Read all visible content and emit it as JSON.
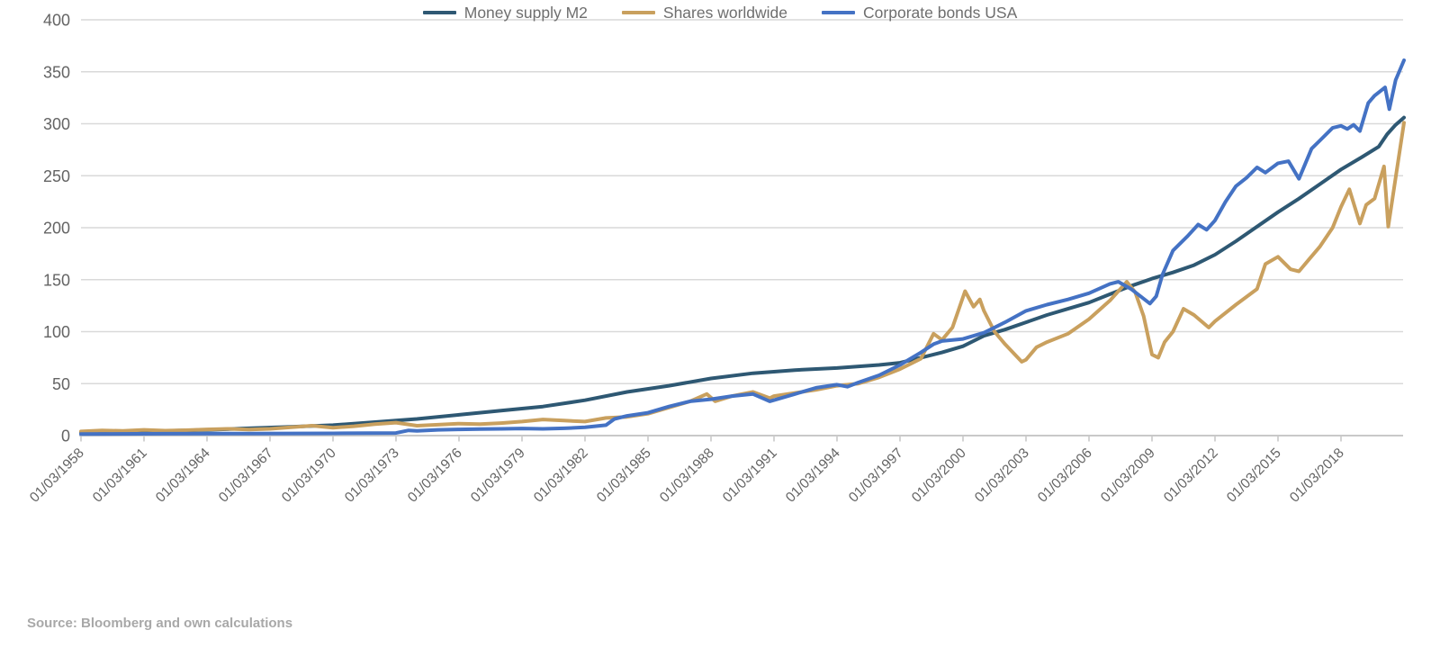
{
  "source_note": "Source: Bloomberg and own calculations",
  "colors": {
    "background": "#ffffff",
    "gridline": "#d9d9d9",
    "axis_line": "#c9c9c9",
    "tick_text": "#646464",
    "legend_text": "#6e6e6e",
    "source_text": "#a8a8a8",
    "series_money_supply": "#2e5873",
    "series_shares": "#c9a05e",
    "series_bonds": "#4472c4"
  },
  "chart_data": {
    "type": "line",
    "title": "",
    "grid": true,
    "legend_position": "bottom-center",
    "y_axis": {
      "min": 0,
      "max": 400,
      "step": 50,
      "tick_labels": [
        "0",
        "50",
        "100",
        "150",
        "200",
        "250",
        "300",
        "350",
        "400"
      ]
    },
    "x_axis": {
      "date_format": "dd/mm/yyyy",
      "label_rotation_deg": -45,
      "tick_years": [
        1958,
        1961,
        1964,
        1967,
        1970,
        1973,
        1976,
        1979,
        1982,
        1985,
        1988,
        1991,
        1994,
        1997,
        2000,
        2003,
        2006,
        2009,
        2012,
        2015,
        2018
      ],
      "tick_labels": [
        "01/03/1958",
        "01/03/1961",
        "01/03/1964",
        "01/03/1967",
        "01/03/1970",
        "01/03/1973",
        "01/03/1976",
        "01/03/1979",
        "01/03/1982",
        "01/03/1985",
        "01/03/1988",
        "01/03/1991",
        "01/03/1994",
        "01/03/1997",
        "01/03/2000",
        "01/03/2003",
        "01/03/2006",
        "01/03/2009",
        "01/03/2012",
        "01/03/2015",
        "01/03/2018"
      ],
      "data_end_year": 2021
    },
    "series": [
      {
        "name": "Money supply M2",
        "color": "#2e5873",
        "points": [
          [
            1958,
            3
          ],
          [
            1960,
            3.5
          ],
          [
            1962,
            4.5
          ],
          [
            1964,
            5.5
          ],
          [
            1966,
            7
          ],
          [
            1968,
            8.5
          ],
          [
            1970,
            10
          ],
          [
            1972,
            13
          ],
          [
            1974,
            16
          ],
          [
            1976,
            20
          ],
          [
            1978,
            24
          ],
          [
            1980,
            28
          ],
          [
            1982,
            34
          ],
          [
            1984,
            42
          ],
          [
            1986,
            48
          ],
          [
            1988,
            55
          ],
          [
            1990,
            60
          ],
          [
            1992,
            63
          ],
          [
            1994,
            65
          ],
          [
            1996,
            68
          ],
          [
            1997,
            70
          ],
          [
            1998,
            75
          ],
          [
            1999,
            80
          ],
          [
            2000,
            86
          ],
          [
            2001,
            96
          ],
          [
            2002,
            102
          ],
          [
            2003,
            109
          ],
          [
            2004,
            116
          ],
          [
            2005,
            122
          ],
          [
            2006,
            128
          ],
          [
            2007,
            136
          ],
          [
            2008,
            144
          ],
          [
            2009,
            151
          ],
          [
            2010,
            157
          ],
          [
            2011,
            164
          ],
          [
            2012,
            174
          ],
          [
            2013,
            187
          ],
          [
            2014,
            201
          ],
          [
            2015,
            215
          ],
          [
            2016,
            228
          ],
          [
            2017,
            242
          ],
          [
            2018,
            256
          ],
          [
            2019,
            268
          ],
          [
            2019.8,
            278
          ],
          [
            2020.2,
            290
          ],
          [
            2020.6,
            299
          ],
          [
            2021,
            306
          ]
        ]
      },
      {
        "name": "Shares worldwide",
        "color": "#c9a05e",
        "points": [
          [
            1958,
            4
          ],
          [
            1959,
            5
          ],
          [
            1960,
            4.5
          ],
          [
            1961,
            5.5
          ],
          [
            1962,
            4.8
          ],
          [
            1963,
            5.2
          ],
          [
            1964,
            6
          ],
          [
            1965,
            6.5
          ],
          [
            1966,
            5.8
          ],
          [
            1967,
            6.5
          ],
          [
            1968,
            8
          ],
          [
            1969,
            9.5
          ],
          [
            1970,
            7.5
          ],
          [
            1971,
            9
          ],
          [
            1972,
            11
          ],
          [
            1973,
            12.5
          ],
          [
            1974,
            9.5
          ],
          [
            1975,
            10.5
          ],
          [
            1976,
            11.5
          ],
          [
            1977,
            11
          ],
          [
            1978,
            12
          ],
          [
            1979,
            13.5
          ],
          [
            1980,
            15.5
          ],
          [
            1981,
            14.5
          ],
          [
            1982,
            13.5
          ],
          [
            1983,
            17
          ],
          [
            1984,
            18
          ],
          [
            1985,
            21
          ],
          [
            1986,
            27
          ],
          [
            1987,
            33
          ],
          [
            1987.8,
            40
          ],
          [
            1988.2,
            33
          ],
          [
            1989,
            38
          ],
          [
            1990,
            42
          ],
          [
            1990.8,
            36
          ],
          [
            1991,
            38
          ],
          [
            1992,
            41
          ],
          [
            1993,
            44
          ],
          [
            1994,
            48
          ],
          [
            1995,
            50
          ],
          [
            1996,
            56
          ],
          [
            1997,
            64
          ],
          [
            1998,
            74
          ],
          [
            1998.6,
            98
          ],
          [
            1999,
            92
          ],
          [
            1999.5,
            104
          ],
          [
            2000.1,
            139
          ],
          [
            2000.5,
            124
          ],
          [
            2000.8,
            131
          ],
          [
            2001,
            120
          ],
          [
            2001.5,
            100
          ],
          [
            2002,
            88
          ],
          [
            2002.8,
            71
          ],
          [
            2003,
            73
          ],
          [
            2003.5,
            85
          ],
          [
            2004,
            90
          ],
          [
            2005,
            98
          ],
          [
            2006,
            112
          ],
          [
            2007,
            130
          ],
          [
            2007.8,
            148
          ],
          [
            2008.2,
            138
          ],
          [
            2008.6,
            115
          ],
          [
            2009,
            78
          ],
          [
            2009.3,
            75
          ],
          [
            2009.6,
            90
          ],
          [
            2010,
            100
          ],
          [
            2010.5,
            122
          ],
          [
            2011,
            116
          ],
          [
            2011.7,
            104
          ],
          [
            2012,
            110
          ],
          [
            2013,
            126
          ],
          [
            2014,
            141
          ],
          [
            2014.4,
            165
          ],
          [
            2015,
            172
          ],
          [
            2015.6,
            160
          ],
          [
            2016,
            158
          ],
          [
            2016.5,
            170
          ],
          [
            2017,
            182
          ],
          [
            2017.6,
            200
          ],
          [
            2018,
            220
          ],
          [
            2018.4,
            237
          ],
          [
            2018.9,
            204
          ],
          [
            2019.2,
            222
          ],
          [
            2019.6,
            228
          ],
          [
            2020.05,
            259
          ],
          [
            2020.25,
            201
          ],
          [
            2020.6,
            248
          ],
          [
            2021,
            301
          ]
        ]
      },
      {
        "name": "Corporate bonds USA",
        "color": "#4472c4",
        "points": [
          [
            1958,
            1.5
          ],
          [
            1962,
            1.8
          ],
          [
            1966,
            2
          ],
          [
            1970,
            2.2
          ],
          [
            1973,
            2.5
          ],
          [
            1973.6,
            5
          ],
          [
            1974,
            4.5
          ],
          [
            1975,
            5.5
          ],
          [
            1976,
            6
          ],
          [
            1977,
            6.2
          ],
          [
            1978,
            6.5
          ],
          [
            1979,
            6.8
          ],
          [
            1980,
            6.5
          ],
          [
            1981,
            7
          ],
          [
            1982,
            8
          ],
          [
            1983,
            10
          ],
          [
            1983.4,
            16
          ],
          [
            1984,
            19
          ],
          [
            1985,
            22
          ],
          [
            1986,
            28
          ],
          [
            1987,
            33
          ],
          [
            1988,
            35
          ],
          [
            1989,
            38
          ],
          [
            1990,
            40
          ],
          [
            1990.8,
            33
          ],
          [
            1992,
            40
          ],
          [
            1993,
            46
          ],
          [
            1994,
            49
          ],
          [
            1994.5,
            47
          ],
          [
            1995,
            51
          ],
          [
            1996,
            58
          ],
          [
            1997,
            68
          ],
          [
            1998,
            80
          ],
          [
            1998.6,
            88
          ],
          [
            1999,
            91
          ],
          [
            2000,
            93
          ],
          [
            2001,
            99
          ],
          [
            2001.5,
            104
          ],
          [
            2002,
            109
          ],
          [
            2003,
            120
          ],
          [
            2004,
            126
          ],
          [
            2005,
            131
          ],
          [
            2006,
            137
          ],
          [
            2007,
            146
          ],
          [
            2007.4,
            148
          ],
          [
            2008,
            141
          ],
          [
            2008.9,
            127
          ],
          [
            2009.2,
            134
          ],
          [
            2009.5,
            155
          ],
          [
            2010,
            178
          ],
          [
            2010.7,
            192
          ],
          [
            2011.2,
            203
          ],
          [
            2011.6,
            198
          ],
          [
            2012,
            207
          ],
          [
            2012.5,
            225
          ],
          [
            2013,
            240
          ],
          [
            2013.5,
            248
          ],
          [
            2014,
            258
          ],
          [
            2014.4,
            253
          ],
          [
            2015,
            262
          ],
          [
            2015.5,
            264
          ],
          [
            2016,
            247
          ],
          [
            2016.6,
            276
          ],
          [
            2017,
            284
          ],
          [
            2017.6,
            296
          ],
          [
            2018,
            298
          ],
          [
            2018.3,
            295
          ],
          [
            2018.6,
            299
          ],
          [
            2018.9,
            293
          ],
          [
            2019.3,
            320
          ],
          [
            2019.6,
            327
          ],
          [
            2020.1,
            335
          ],
          [
            2020.3,
            314
          ],
          [
            2020.6,
            342
          ],
          [
            2021,
            361
          ]
        ]
      }
    ]
  }
}
